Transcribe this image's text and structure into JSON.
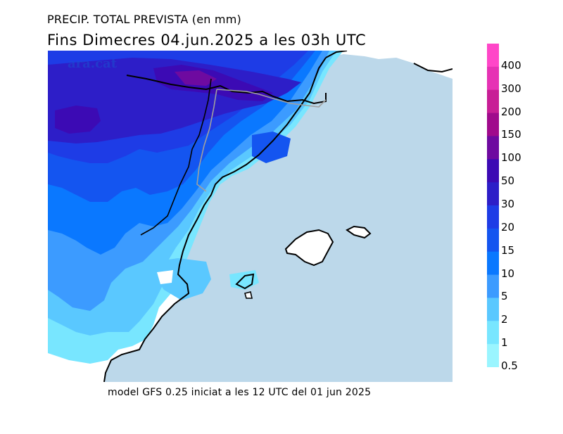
{
  "title": {
    "line1": "PRECIP. TOTAL PREVISTA (en mm)",
    "line2": "Fins Dimecres  04.jun.2025  a les 03h  UTC"
  },
  "watermark": "ara.cat",
  "footer": "model GFS 0.25 iniciat a les 12 UTC del 01 jun 2025",
  "legend": {
    "labels": [
      "400",
      "300",
      "200",
      "150",
      "100",
      "50",
      "30",
      "20",
      "15",
      "10",
      "5",
      "2",
      "1",
      "0.5"
    ],
    "colors": [
      "#ff46c8",
      "#e632b4",
      "#c81e96",
      "#a00a8c",
      "#6e0aa0",
      "#3c0ab4",
      "#2d1ec8",
      "#1e3ce6",
      "#1455f0",
      "#0a78ff",
      "#3c9bff",
      "#5ac8ff",
      "#78e6ff",
      "#9af5ff"
    ]
  },
  "colors": {
    "sea": "#bcd8ea",
    "land_dry": "#ffffff",
    "border_line": "#000000",
    "admin_line": "#a0a0a0"
  }
}
